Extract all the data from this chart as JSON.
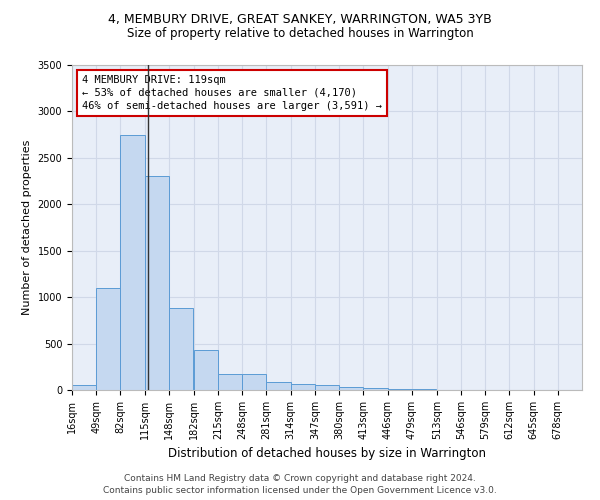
{
  "title": "4, MEMBURY DRIVE, GREAT SANKEY, WARRINGTON, WA5 3YB",
  "subtitle": "Size of property relative to detached houses in Warrington",
  "xlabel": "Distribution of detached houses by size in Warrington",
  "ylabel": "Number of detached properties",
  "bin_labels": [
    "16sqm",
    "49sqm",
    "82sqm",
    "115sqm",
    "148sqm",
    "182sqm",
    "215sqm",
    "248sqm",
    "281sqm",
    "314sqm",
    "347sqm",
    "380sqm",
    "413sqm",
    "446sqm",
    "479sqm",
    "513sqm",
    "546sqm",
    "579sqm",
    "612sqm",
    "645sqm",
    "678sqm"
  ],
  "bin_edges": [
    16,
    49,
    82,
    115,
    148,
    182,
    215,
    248,
    281,
    314,
    347,
    380,
    413,
    446,
    479,
    513,
    546,
    579,
    612,
    645,
    678
  ],
  "bar_values": [
    50,
    1100,
    2750,
    2300,
    880,
    430,
    175,
    170,
    90,
    65,
    50,
    35,
    25,
    10,
    8,
    5,
    3,
    2,
    1,
    1,
    0
  ],
  "bar_color": "#c5d8f0",
  "bar_edge_color": "#5b9bd5",
  "property_size": 119,
  "annotation_text": "4 MEMBURY DRIVE: 119sqm\n← 53% of detached houses are smaller (4,170)\n46% of semi-detached houses are larger (3,591) →",
  "annotation_box_color": "#ffffff",
  "annotation_box_edge_color": "#cc0000",
  "vline_color": "#333333",
  "grid_color": "#d0d8e8",
  "background_color": "#e8eef8",
  "ylim": [
    0,
    3500
  ],
  "yticks": [
    0,
    500,
    1000,
    1500,
    2000,
    2500,
    3000,
    3500
  ],
  "footer_line1": "Contains HM Land Registry data © Crown copyright and database right 2024.",
  "footer_line2": "Contains public sector information licensed under the Open Government Licence v3.0.",
  "title_fontsize": 9,
  "subtitle_fontsize": 8.5,
  "xlabel_fontsize": 8.5,
  "ylabel_fontsize": 8,
  "tick_fontsize": 7,
  "annotation_fontsize": 7.5,
  "footer_fontsize": 6.5
}
